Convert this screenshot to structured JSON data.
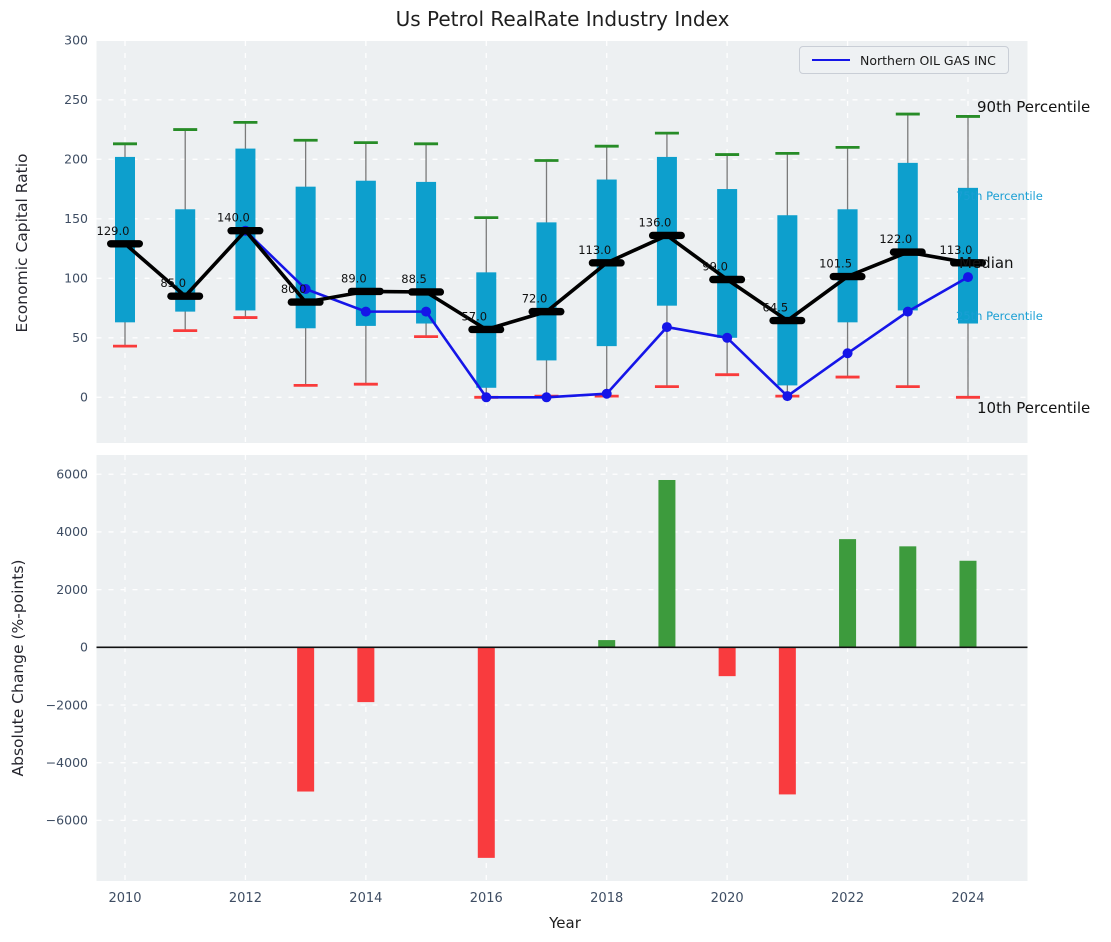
{
  "title": "Us Petrol RealRate Industry Index",
  "legend": {
    "label": "Northern OIL GAS INC"
  },
  "annotations": {
    "p90": "90th Percentile",
    "p75": "75th Percentile",
    "median": "Median",
    "p25": "25th Percentile",
    "p10": "10th Percentile"
  },
  "colors": {
    "axes_bg": "#edf0f2",
    "grid": "#ffffff",
    "box": "#0d9fcd",
    "whisker": "#7a7a7a",
    "cap_high": "#278c27",
    "cap_low": "#f93b3b",
    "median": "#000000",
    "company_line": "#1515e8",
    "bar_positive": "#3d9b3d",
    "bar_negative": "#f93b3e",
    "tick_label": "#3e4d63",
    "annotation_teal": "#1a9fd4",
    "zero_line": "#111111"
  },
  "chart_data": [
    {
      "type": "box-percentile-with-line",
      "title": "Us Petrol RealRate Industry Index",
      "ylabel": "Economic Capital Ratio",
      "ylim": [
        -38,
        300
      ],
      "yticks": [
        0,
        50,
        100,
        150,
        200,
        250,
        300
      ],
      "xticks": [
        2010,
        2012,
        2014,
        2016,
        2018,
        2020,
        2022,
        2024
      ],
      "grid": true,
      "legend_position": "upper right",
      "years": [
        2010,
        2011,
        2012,
        2013,
        2014,
        2015,
        2016,
        2017,
        2018,
        2019,
        2020,
        2021,
        2022,
        2023,
        2024
      ],
      "p90": [
        213,
        225,
        231,
        216,
        214,
        213,
        151,
        199,
        211,
        222,
        204,
        205,
        210,
        238,
        236
      ],
      "p75": [
        202,
        158,
        209,
        177,
        182,
        181,
        105,
        147,
        183,
        202,
        175,
        153,
        158,
        197,
        176
      ],
      "median": [
        129,
        85,
        140,
        80,
        89,
        88.5,
        57,
        72,
        113,
        136,
        99,
        64.5,
        101.5,
        122,
        113
      ],
      "median_labels": [
        "129.0",
        "85.0",
        "140.0",
        "80.0",
        "89.0",
        "88.5",
        "57.0",
        "72.0",
        "113.0",
        "136.0",
        "99.0",
        "64.5",
        "101.5",
        "122.0",
        "113.0"
      ],
      "p25": [
        63,
        72,
        73,
        58,
        60,
        62,
        8,
        31,
        43,
        77,
        50,
        10,
        63,
        73,
        62
      ],
      "p10": [
        43,
        56,
        67,
        10,
        11,
        51,
        0,
        1,
        1,
        9,
        19,
        1,
        17,
        9,
        0
      ],
      "company": {
        "name": "Northern OIL GAS INC",
        "years": [
          2012,
          2013,
          2014,
          2015,
          2016,
          2017,
          2018,
          2019,
          2020,
          2021,
          2022,
          2023,
          2024
        ],
        "values": [
          140,
          91,
          72,
          72,
          0,
          0,
          3,
          59,
          50,
          1,
          37,
          72,
          101
        ]
      }
    },
    {
      "type": "bar",
      "ylabel": "Absolute Change (%-points)",
      "xlabel": "Year",
      "ylim": [
        -8100,
        6650
      ],
      "yticks": [
        -6000,
        -4000,
        -2000,
        0,
        2000,
        4000,
        6000
      ],
      "xticks": [
        2010,
        2012,
        2014,
        2016,
        2018,
        2020,
        2022,
        2024
      ],
      "grid": true,
      "categories": [
        2010,
        2011,
        2012,
        2013,
        2014,
        2015,
        2016,
        2017,
        2018,
        2019,
        2020,
        2021,
        2022,
        2023,
        2024
      ],
      "values": [
        null,
        null,
        null,
        -5000,
        -1900,
        null,
        -7300,
        null,
        250,
        5800,
        -1000,
        -5100,
        3750,
        3500,
        3000
      ]
    }
  ]
}
